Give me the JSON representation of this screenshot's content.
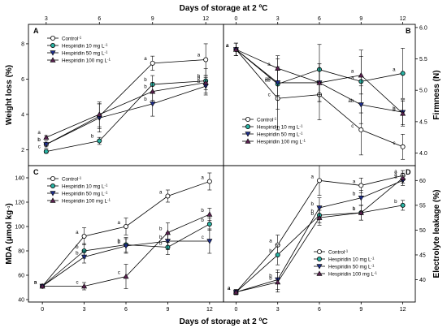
{
  "figure": {
    "top_xlabel": "Days of storage at  2 ºC",
    "bottom_xlabel": "Days of storage at  2 ºC"
  },
  "legend_colors": {
    "Control": "#ffffff",
    "Hespiridin 10 mg L": "#2ab3a4",
    "Hespiridin 50 mg L": "#1f2f8c",
    "Hespiridin 100 mg L": "#5a2150"
  },
  "chart_data": [
    {
      "type": "line",
      "panel": "A",
      "ylabel": "Weight loss (%)",
      "x": [
        3,
        6,
        9,
        12
      ],
      "xlim": [
        2,
        13
      ],
      "ylim": [
        1.1,
        9.1
      ],
      "yticks": [
        2,
        4,
        6,
        8
      ],
      "xticks": [
        3,
        6,
        9,
        12
      ],
      "xticks_position": "top",
      "yaxis_side": "left",
      "legend": "top-left",
      "series": [
        {
          "name": "Control",
          "superscript": "-1",
          "marker": "circle",
          "fill": "#ffffff",
          "values": [
            2.3,
            3.9,
            6.9,
            7.1
          ],
          "errors": [
            0.2,
            0.7,
            0.4,
            0.9
          ],
          "letters": [
            "b",
            "",
            "a",
            "a"
          ]
        },
        {
          "name": "Hespiridin 10 mg L",
          "superscript": "-1",
          "marker": "circle",
          "fill": "#2ab3a4",
          "values": [
            1.9,
            2.5,
            5.7,
            5.9
          ],
          "errors": [
            0.1,
            0.2,
            0.5,
            0.7
          ],
          "letters": [
            "c",
            "b",
            "b",
            "b"
          ]
        },
        {
          "name": "Hespiridin 50 mg L",
          "superscript": "-1",
          "marker": "triangle-down",
          "fill": "#1f2f8c",
          "values": [
            2.3,
            3.8,
            4.6,
            5.6
          ],
          "errors": [
            0.1,
            0.8,
            0.7,
            0.5
          ],
          "letters": [
            "b",
            "",
            "b",
            "b"
          ]
        },
        {
          "name": "Hespiridin 100 mg L",
          "superscript": "-1",
          "marker": "triangle-up",
          "fill": "#5a2150",
          "values": [
            2.7,
            4.0,
            5.3,
            5.8
          ],
          "errors": [
            0.1,
            0.7,
            0.5,
            0.4
          ],
          "letters": [
            "a",
            "",
            "b",
            "b"
          ]
        }
      ]
    },
    {
      "type": "line",
      "panel": "B",
      "ylabel": "Firmness (N)",
      "x": [
        0,
        3,
        6,
        9,
        12
      ],
      "xlim": [
        -0.9,
        12.9
      ],
      "ylim": [
        3.8,
        6.05
      ],
      "yticks": [
        4.0,
        4.5,
        5.0,
        5.5,
        6.0
      ],
      "xticks": [
        0,
        3,
        6,
        9,
        12
      ],
      "xticks_position": "top",
      "yaxis_side": "right",
      "legend": "bottom-left",
      "series": [
        {
          "name": "Control",
          "superscript": "-1",
          "marker": "circle",
          "fill": "#ffffff",
          "values": [
            5.65,
            4.87,
            4.93,
            4.37,
            4.1
          ],
          "errors": [
            0.1,
            0.5,
            0.4,
            0.4,
            0.2
          ],
          "letters": [
            "a",
            "c",
            "",
            "c",
            "c"
          ]
        },
        {
          "name": "Hespiridin 10 mg L",
          "superscript": "-1",
          "marker": "circle",
          "fill": "#2ab3a4",
          "values": [
            5.65,
            5.1,
            5.33,
            5.14,
            5.27
          ],
          "errors": [
            0.1,
            0.4,
            0.4,
            0.5,
            0.4
          ],
          "letters": [
            "a",
            "ab",
            "",
            "a",
            "a"
          ]
        },
        {
          "name": "Hespiridin 50 mg L",
          "superscript": "-1",
          "marker": "triangle-down",
          "fill": "#1f2f8c",
          "values": [
            5.65,
            5.12,
            5.12,
            4.77,
            4.65
          ],
          "errors": [
            0.1,
            0.2,
            0.3,
            0.3,
            0.2
          ],
          "letters": [
            "a",
            "ab",
            "",
            "ab",
            "b"
          ]
        },
        {
          "name": "Hespiridin 100 mg L",
          "superscript": "-1",
          "marker": "triangle-up",
          "fill": "#5a2150",
          "values": [
            5.65,
            5.35,
            5.12,
            5.24,
            4.63
          ],
          "errors": [
            0.1,
            0.2,
            0.3,
            0.3,
            0.2
          ],
          "letters": [
            "a",
            "a",
            "",
            "a",
            "b"
          ]
        }
      ]
    },
    {
      "type": "line",
      "panel": "C",
      "ylabel": "MDA (μmol kg",
      "ylabel_superscript": "−1",
      "ylabel_suffix": ")",
      "x": [
        0,
        3,
        6,
        9,
        12
      ],
      "xlim": [
        -1.0,
        13.0
      ],
      "ylim": [
        38,
        150
      ],
      "yticks": [
        40,
        60,
        80,
        100,
        120,
        140
      ],
      "xticks": [
        0,
        3,
        6,
        9,
        12
      ],
      "xticks_position": "bottom",
      "yaxis_side": "left",
      "legend": "top-left",
      "series": [
        {
          "name": "Control",
          "superscript": "-1",
          "marker": "circle",
          "fill": "#ffffff",
          "values": [
            51,
            92,
            100,
            125,
            137
          ],
          "errors": [
            1.5,
            7,
            7,
            5,
            7
          ],
          "letters": [
            "a",
            "a",
            "a",
            "a",
            "a"
          ]
        },
        {
          "name": "Hespiridin 10 mg L",
          "superscript": "-1",
          "marker": "circle",
          "fill": "#2ab3a4",
          "values": [
            51,
            80,
            85,
            83,
            102
          ],
          "errors": [
            1.5,
            6,
            6,
            6,
            5
          ],
          "letters": [
            "a",
            "b",
            "b",
            "b",
            "b"
          ]
        },
        {
          "name": "Hespiridin 50 mg L",
          "superscript": "-1",
          "marker": "triangle-down",
          "fill": "#1f2f8c",
          "values": [
            51,
            75,
            84,
            88,
            88
          ],
          "errors": [
            1.5,
            5,
            6,
            7,
            10
          ],
          "letters": [
            "a",
            "b",
            "b",
            "b",
            "c"
          ]
        },
        {
          "name": "Hespiridin 100 mg L",
          "superscript": "-1",
          "marker": "triangle-up",
          "fill": "#5a2150",
          "values": [
            51,
            51,
            59,
            95,
            110
          ],
          "errors": [
            1.5,
            3,
            10,
            8,
            5
          ],
          "letters": [
            "a",
            "c",
            "c",
            "b",
            "b"
          ]
        }
      ]
    },
    {
      "type": "line",
      "panel": "D",
      "ylabel": "Electrolyte leakage (%)",
      "x": [
        0,
        3,
        6,
        9,
        12
      ],
      "xlim": [
        -0.9,
        12.9
      ],
      "ylim": [
        35.5,
        63
      ],
      "yticks": [
        40,
        45,
        50,
        55,
        60
      ],
      "xticks": [
        0,
        3,
        6,
        9,
        12
      ],
      "xticks_position": "bottom",
      "yaxis_side": "right",
      "legend": "bottom-right",
      "series": [
        {
          "name": "Control",
          "superscript": "-1",
          "marker": "circle",
          "fill": "#ffffff",
          "values": [
            37.5,
            47,
            60,
            59,
            61
          ],
          "errors": [
            0.5,
            2,
            3,
            1.5,
            1
          ],
          "letters": [
            "a",
            "a",
            "a",
            "a",
            "a"
          ]
        },
        {
          "name": "Hespiridin 10 mg L",
          "superscript": "-1",
          "marker": "circle",
          "fill": "#2ab3a4",
          "values": [
            37.5,
            45,
            53,
            53.5,
            55
          ],
          "errors": [
            0.5,
            2,
            1.5,
            1.5,
            1
          ],
          "letters": [
            "a",
            "b",
            "b",
            "b",
            "b"
          ]
        },
        {
          "name": "Hespiridin 50 mg L",
          "superscript": "-1",
          "marker": "triangle-down",
          "fill": "#1f2f8c",
          "values": [
            37.5,
            40,
            54.5,
            56.5,
            60
          ],
          "errors": [
            0.5,
            2,
            2,
            1.5,
            1
          ],
          "letters": [
            "a",
            "b",
            "b",
            "b",
            "a"
          ]
        },
        {
          "name": "Hespiridin 100 mg L",
          "superscript": "-1",
          "marker": "triangle-up",
          "fill": "#5a2150",
          "values": [
            37.5,
            39.5,
            52.5,
            53.5,
            60.5
          ],
          "errors": [
            0.5,
            2,
            1.5,
            1.5,
            1
          ],
          "letters": [
            "a",
            "b",
            "b",
            "b",
            "a"
          ]
        }
      ]
    }
  ]
}
